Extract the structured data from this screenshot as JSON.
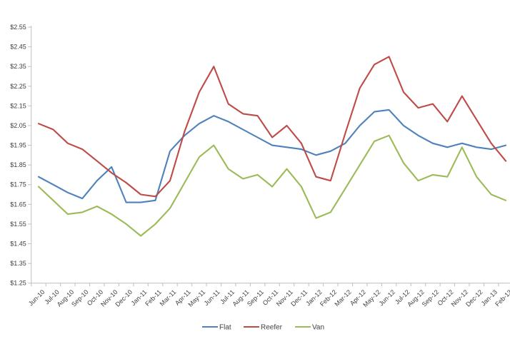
{
  "chart_data": {
    "type": "line",
    "title": "",
    "x_categories": [
      "Jun-10",
      "Jul-10",
      "Aug-10",
      "Sep-10",
      "Oct-10",
      "Nov-10",
      "Dec-10",
      "Jan-11",
      "Feb-11",
      "Mar-11",
      "Apr-11",
      "May-11",
      "Jun-11",
      "Jul-11",
      "Aug-11",
      "Sep-11",
      "Oct-11",
      "Nov-11",
      "Dec-11",
      "Jan-12",
      "Feb-12",
      "Mar-12",
      "Apr-12",
      "May-12",
      "Jun-12",
      "Jul-12",
      "Aug-12",
      "Sep-12",
      "Oct-12",
      "Nov-12",
      "Dec-12",
      "Jan-13",
      "Feb-13"
    ],
    "series": [
      {
        "name": "Flat",
        "color": "#4F81BD",
        "values": [
          1.79,
          1.75,
          1.71,
          1.68,
          1.77,
          1.84,
          1.66,
          1.66,
          1.67,
          1.92,
          2.0,
          2.06,
          2.1,
          2.07,
          2.03,
          1.99,
          1.95,
          1.94,
          1.93,
          1.9,
          1.92,
          1.96,
          2.05,
          2.12,
          2.13,
          2.05,
          2.0,
          1.96,
          1.94,
          1.96,
          1.94,
          1.93,
          1.95
        ]
      },
      {
        "name": "Reefer",
        "color": "#BE4B48",
        "values": [
          2.06,
          2.03,
          1.96,
          1.93,
          1.87,
          1.81,
          1.76,
          1.7,
          1.69,
          1.77,
          2.02,
          2.22,
          2.35,
          2.16,
          2.11,
          2.1,
          1.99,
          2.05,
          1.96,
          1.79,
          1.77,
          2.01,
          2.24,
          2.36,
          2.4,
          2.22,
          2.14,
          2.16,
          2.07,
          2.2,
          2.08,
          1.96,
          1.87
        ]
      },
      {
        "name": "Van",
        "color": "#9BBB59",
        "values": [
          1.74,
          1.67,
          1.6,
          1.61,
          1.64,
          1.6,
          1.55,
          1.49,
          1.55,
          1.63,
          1.76,
          1.89,
          1.95,
          1.83,
          1.78,
          1.8,
          1.74,
          1.83,
          1.74,
          1.58,
          1.61,
          1.73,
          1.85,
          1.97,
          2.0,
          1.86,
          1.77,
          1.8,
          1.79,
          1.94,
          1.79,
          1.7,
          1.67
        ]
      }
    ],
    "y_axis": {
      "min": 1.25,
      "max": 2.55,
      "step": 0.1,
      "tick_labels": [
        "$2.55",
        "$2.45",
        "$2.35",
        "$2.25",
        "$2.15",
        "$2.05",
        "$1.95",
        "$1.85",
        "$1.75",
        "$1.65",
        "$1.55",
        "$1.45",
        "$1.35",
        "$1.25"
      ]
    },
    "legend": {
      "position": "bottom",
      "entries": [
        "Flat",
        "Reefer",
        "Van"
      ]
    },
    "grid": false
  },
  "styles": {
    "background": "#FFFFFF",
    "axis_color": "#BFBFBF",
    "tick_color": "#BFBFBF",
    "label_color": "#3F3F3F"
  }
}
